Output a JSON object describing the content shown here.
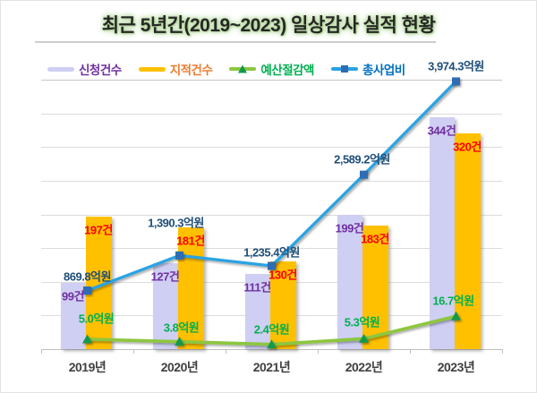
{
  "title": "최근 5년간(2019~2023) 일상감사 실적 현황",
  "legend": [
    {
      "key": "applications",
      "label": "신청건수",
      "swatch": "bar",
      "color": "#cfcff4",
      "text_color": "#7030a0"
    },
    {
      "key": "findings",
      "label": "지적건수",
      "swatch": "bar",
      "color": "#ffc000",
      "text_color": "#ed7d31"
    },
    {
      "key": "budget-savings",
      "label": "예산절감액",
      "swatch": "line-triangle",
      "color": "#8dc63f",
      "marker_color": "#12984c",
      "text_color": "#00b050"
    },
    {
      "key": "total-project-cost",
      "label": "총사업비",
      "swatch": "line-square",
      "color": "#29a3e2",
      "marker_color": "#2e6db4",
      "text_color": "#0070c0"
    }
  ],
  "chart_data": {
    "type": "bar+line combo",
    "title": "최근 5년간(2019~2023) 일상감사 실적 현황",
    "categories": [
      "2019년",
      "2020년",
      "2021년",
      "2022년",
      "2023년"
    ],
    "legend_position": "top",
    "grid": "horizontal",
    "axes": {
      "primary_unit": "건",
      "primary_range": [
        0,
        400
      ],
      "primary_gridline_step": 50,
      "secondary_unit": "억원",
      "secondary_range": [
        0,
        4000
      ],
      "tick_labels_visible": false
    },
    "series": [
      {
        "key": "applications",
        "name": "신청건수",
        "render": "bar",
        "axis": "primary",
        "unit": "건",
        "values": [
          99,
          127,
          111,
          199,
          344
        ],
        "labels": [
          "99건",
          "127건",
          "111건",
          "199건",
          "344건"
        ],
        "color": "#cfcff4",
        "label_color": "#7030a0"
      },
      {
        "key": "findings",
        "name": "지적건수",
        "render": "bar",
        "axis": "primary",
        "unit": "건",
        "values": [
          197,
          181,
          130,
          183,
          320
        ],
        "labels": [
          "197건",
          "181건",
          "130건",
          "183건",
          "320건"
        ],
        "color": "#ffc000",
        "label_color": "#ff0000"
      },
      {
        "key": "budget-savings",
        "name": "예산절감액",
        "render": "line",
        "marker": "triangle",
        "unit": "억원",
        "values": [
          5.0,
          3.8,
          2.4,
          5.3,
          16.7
        ],
        "labels": [
          "5.0억원",
          "3.8억원",
          "2.4억원",
          "5.3억원",
          "16.7억원"
        ],
        "color": "#8dc63f",
        "marker_color": "#12984c",
        "label_color": "#00b050"
      },
      {
        "key": "total-project-cost",
        "name": "총사업비",
        "render": "line",
        "marker": "square",
        "axis": "secondary",
        "unit": "억원",
        "values": [
          869.8,
          1390.3,
          1235.4,
          2589.2,
          3974.3
        ],
        "labels": [
          "869.8억원",
          "1,390.3억원",
          "1,235.4억원",
          "2,589.2억원",
          "3,974.3억원"
        ],
        "color": "#29a3e2",
        "marker_color": "#2e6db4",
        "label_color": "#1f4e79"
      }
    ]
  }
}
